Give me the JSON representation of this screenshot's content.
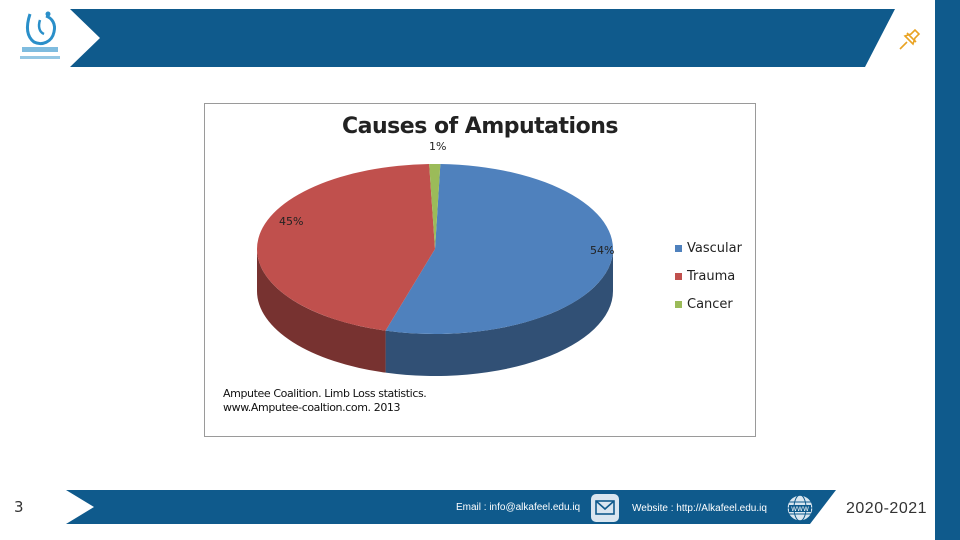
{
  "slide": {
    "number": "3",
    "footer": {
      "email": "Email : info@alkafeel.edu.iq",
      "website": "Website : http://Alkafeel.edu.iq",
      "years": "2020-2021"
    },
    "colors": {
      "brand": "#0f5a8c"
    },
    "icons": [
      "university-logo",
      "pin-icon",
      "mail-icon",
      "www-icon"
    ]
  },
  "chart_data": {
    "type": "pie",
    "title": "Causes of Amputations",
    "categories": [
      "Vascular",
      "Trauma",
      "Cancer"
    ],
    "values": [
      54,
      45,
      1
    ],
    "labels": [
      "54%",
      "45%",
      "1%"
    ],
    "colors": [
      "#4f81bd",
      "#c0504d",
      "#9bbb59"
    ],
    "legend": "right",
    "three_d": true,
    "source": [
      "Amputee Coalition. Limb Loss statistics.",
      "www.Amputee-coaltion.com. 2013"
    ]
  }
}
